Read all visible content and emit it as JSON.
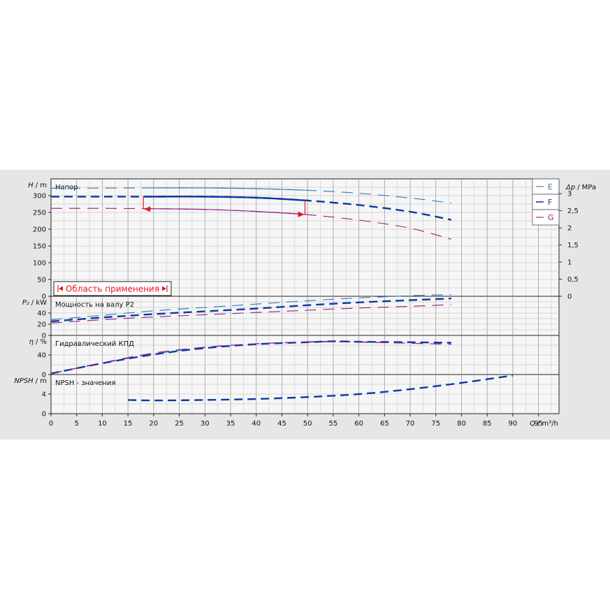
{
  "colors": {
    "E": "#2c79b8",
    "F": "#0a3aa3",
    "G": "#9b1a86",
    "range": "#e8141a",
    "grid": "#a0a0a0",
    "background": "#e6e6e6",
    "plot": "#f6f6f6"
  },
  "legend": {
    "items": [
      {
        "key": "E",
        "label": "E"
      },
      {
        "key": "F",
        "label": "F"
      },
      {
        "key": "G",
        "label": "G"
      }
    ]
  },
  "chart_data": {
    "type": "line",
    "x_axis": {
      "label_symbol": "Q",
      "label_unit": "/ m³/h",
      "range": [
        0,
        99
      ],
      "ticks": [
        0,
        5,
        10,
        15,
        20,
        25,
        30,
        35,
        40,
        45,
        50,
        55,
        60,
        65,
        70,
        75,
        80,
        85,
        90,
        95
      ]
    },
    "panels": [
      {
        "id": "head",
        "title": "Напор",
        "y_symbol": "H",
        "y_unit": "/ m",
        "y_range": [
          0,
          350
        ],
        "y_ticks": [
          0,
          50,
          100,
          150,
          200,
          250,
          300
        ],
        "right_axis": {
          "symbol": "Δp",
          "unit": "/ MPa",
          "ticks": [
            {
              "label": "0",
              "value": 0
            },
            {
              "label": "0,5",
              "value": 51
            },
            {
              "label": "1",
              "value": 102
            },
            {
              "label": "1,5",
              "value": 153
            },
            {
              "label": "2",
              "value": 204
            },
            {
              "label": "2,5",
              "value": 255
            },
            {
              "label": "3",
              "value": 306
            }
          ]
        },
        "annotation": "Область применения",
        "operating_range": {
          "q_min": 18,
          "q_max": 49.5,
          "upper_head": 297,
          "lower_head": 260
        },
        "series": [
          {
            "name": "E",
            "style": "thin",
            "points": [
              [
                0,
                322
              ],
              [
                20,
                323
              ],
              [
                30,
                323
              ],
              [
                40,
                321
              ],
              [
                50,
                316
              ],
              [
                60,
                307
              ],
              [
                70,
                293
              ],
              [
                78,
                278
              ]
            ]
          },
          {
            "name": "F",
            "style": "thick",
            "points": [
              [
                0,
                297
              ],
              [
                10,
                297
              ],
              [
                20,
                297
              ],
              [
                30,
                297
              ],
              [
                40,
                294
              ],
              [
                49.5,
                286
              ],
              [
                60,
                272
              ],
              [
                70,
                252
              ],
              [
                78,
                228
              ]
            ]
          },
          {
            "name": "G",
            "style": "thin",
            "points": [
              [
                0,
                262
              ],
              [
                10,
                262
              ],
              [
                20,
                261
              ],
              [
                30,
                259
              ],
              [
                40,
                253
              ],
              [
                49.5,
                244
              ],
              [
                60,
                227
              ],
              [
                70,
                203
              ],
              [
                78,
                170
              ]
            ]
          }
        ]
      },
      {
        "id": "power",
        "title": "Мощность на валу P2",
        "y_symbol": "P₂",
        "y_unit": "/ kW",
        "y_range": [
          0,
          70
        ],
        "y_ticks": [
          0,
          20,
          40
        ],
        "series": [
          {
            "name": "E",
            "style": "thin",
            "points": [
              [
                0,
                28
              ],
              [
                10,
                36
              ],
              [
                20,
                44
              ],
              [
                30,
                50
              ],
              [
                40,
                56
              ],
              [
                50,
                62
              ],
              [
                60,
                67
              ],
              [
                70,
                71
              ],
              [
                78,
                73
              ]
            ]
          },
          {
            "name": "F",
            "style": "thick",
            "points": [
              [
                0,
                25
              ],
              [
                10,
                32
              ],
              [
                20,
                38
              ],
              [
                30,
                43
              ],
              [
                40,
                48
              ],
              [
                50,
                54
              ],
              [
                60,
                59
              ],
              [
                70,
                63
              ],
              [
                78,
                66
              ]
            ]
          },
          {
            "name": "G",
            "style": "thin",
            "points": [
              [
                0,
                22
              ],
              [
                10,
                28
              ],
              [
                20,
                33
              ],
              [
                30,
                37
              ],
              [
                40,
                41
              ],
              [
                50,
                45
              ],
              [
                60,
                49
              ],
              [
                70,
                52
              ],
              [
                78,
                55
              ]
            ]
          }
        ]
      },
      {
        "id": "efficiency",
        "title": "Гидравлический КПД",
        "y_symbol": "η",
        "y_unit": "/ %",
        "y_range": [
          0,
          80
        ],
        "y_ticks": [
          0,
          40
        ],
        "series": [
          {
            "name": "E",
            "style": "thin",
            "points": [
              [
                0,
                2
              ],
              [
                10,
                23
              ],
              [
                20,
                42
              ],
              [
                30,
                55
              ],
              [
                40,
                63
              ],
              [
                50,
                67
              ],
              [
                55,
                68
              ],
              [
                60,
                67
              ],
              [
                70,
                64
              ],
              [
                78,
                62
              ]
            ]
          },
          {
            "name": "F",
            "style": "thick",
            "points": [
              [
                0,
                2
              ],
              [
                10,
                23
              ],
              [
                20,
                41
              ],
              [
                30,
                54
              ],
              [
                40,
                62
              ],
              [
                50,
                66
              ],
              [
                55,
                68
              ],
              [
                60,
                67
              ],
              [
                70,
                66
              ],
              [
                78,
                65
              ]
            ]
          },
          {
            "name": "G",
            "style": "thin",
            "points": [
              [
                0,
                2
              ],
              [
                10,
                24
              ],
              [
                20,
                44
              ],
              [
                30,
                56
              ],
              [
                40,
                63
              ],
              [
                50,
                66
              ],
              [
                55,
                67
              ],
              [
                60,
                66
              ],
              [
                70,
                64
              ],
              [
                78,
                62
              ]
            ]
          }
        ]
      },
      {
        "id": "npsh",
        "title": "NPSH - значения",
        "y_symbol": "NPSH",
        "y_unit": "/ m",
        "y_range": [
          0,
          8
        ],
        "y_ticks": [
          0,
          4
        ],
        "series": [
          {
            "name": "F",
            "style": "thick",
            "points": [
              [
                15,
                2.8
              ],
              [
                20,
                2.7
              ],
              [
                30,
                2.8
              ],
              [
                40,
                3.0
              ],
              [
                50,
                3.4
              ],
              [
                60,
                4.0
              ],
              [
                70,
                5.0
              ],
              [
                80,
                6.3
              ],
              [
                90,
                7.8
              ]
            ]
          }
        ]
      }
    ]
  }
}
